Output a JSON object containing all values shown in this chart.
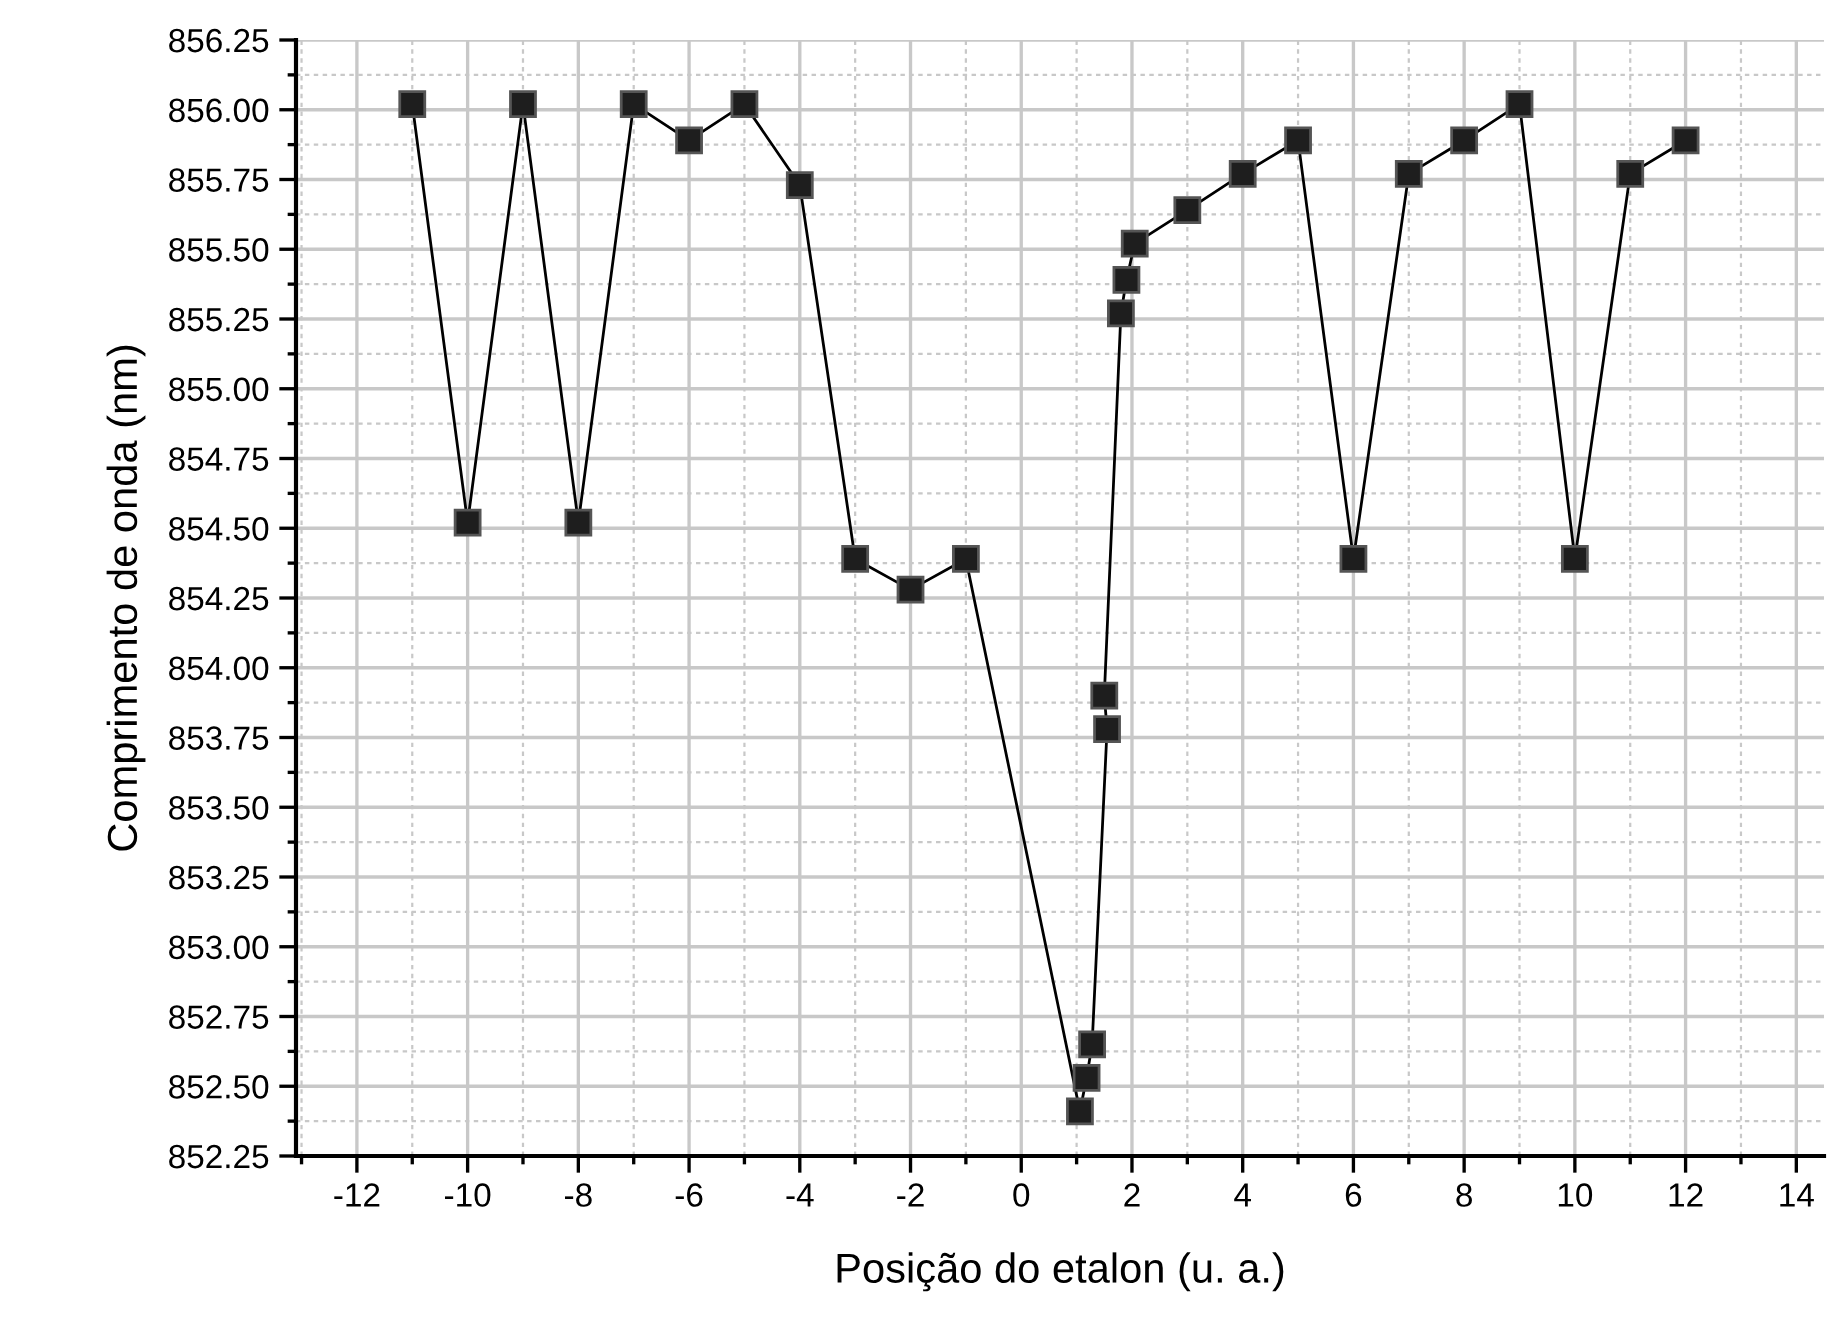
{
  "chart_data": {
    "type": "line",
    "xlabel": "Posição do etalon (u. a.)",
    "ylabel": "Comprimento de onda (nm)",
    "series": [
      {
        "color": "#000000",
        "marker": "square",
        "line_style": "solid",
        "x": [
          -11,
          -10,
          -9,
          -8,
          -7,
          -6,
          -5,
          -4,
          -3,
          -2,
          -1,
          1.06,
          1.18,
          1.28,
          1.55,
          1.5,
          1.8,
          1.9,
          2.05,
          3,
          4,
          5,
          6,
          7,
          8,
          9,
          10,
          11,
          12
        ],
        "values": [
          856.02,
          854.52,
          856.02,
          854.52,
          856.02,
          855.89,
          856.02,
          855.73,
          854.39,
          854.28,
          854.39,
          852.41,
          852.53,
          852.65,
          853.78,
          853.9,
          855.27,
          855.39,
          855.52,
          855.64,
          855.77,
          855.89,
          854.39,
          855.77,
          855.89,
          856.02,
          854.39,
          855.77,
          855.89
        ]
      }
    ],
    "xlim": [
      -13.1,
      14.5
    ],
    "ylim": [
      852.25,
      856.25
    ],
    "xticks": [
      -12,
      -10,
      -8,
      -6,
      -4,
      -2,
      0,
      2,
      4,
      6,
      8,
      10,
      12,
      14
    ],
    "yticks": [
      {
        "value": 852.25,
        "label": "852.25"
      },
      {
        "value": 852.5,
        "label": "852.50"
      },
      {
        "value": 852.75,
        "label": "852.75"
      },
      {
        "value": 853.0,
        "label": "853.00"
      },
      {
        "value": 853.25,
        "label": "853.25"
      },
      {
        "value": 853.5,
        "label": "853.50"
      },
      {
        "value": 853.75,
        "label": "853.75"
      },
      {
        "value": 854.0,
        "label": "854.00"
      },
      {
        "value": 854.25,
        "label": "854.25"
      },
      {
        "value": 854.5,
        "label": "854.50"
      },
      {
        "value": 854.75,
        "label": "854.75"
      },
      {
        "value": 855.0,
        "label": "855.00"
      },
      {
        "value": 855.25,
        "label": "855.25"
      },
      {
        "value": 855.5,
        "label": "855.50"
      },
      {
        "value": 855.75,
        "label": "855.75"
      },
      {
        "value": 856.0,
        "label": "856.00"
      },
      {
        "value": 856.25,
        "label": "856.25"
      }
    ],
    "grid": true,
    "legend": false
  }
}
